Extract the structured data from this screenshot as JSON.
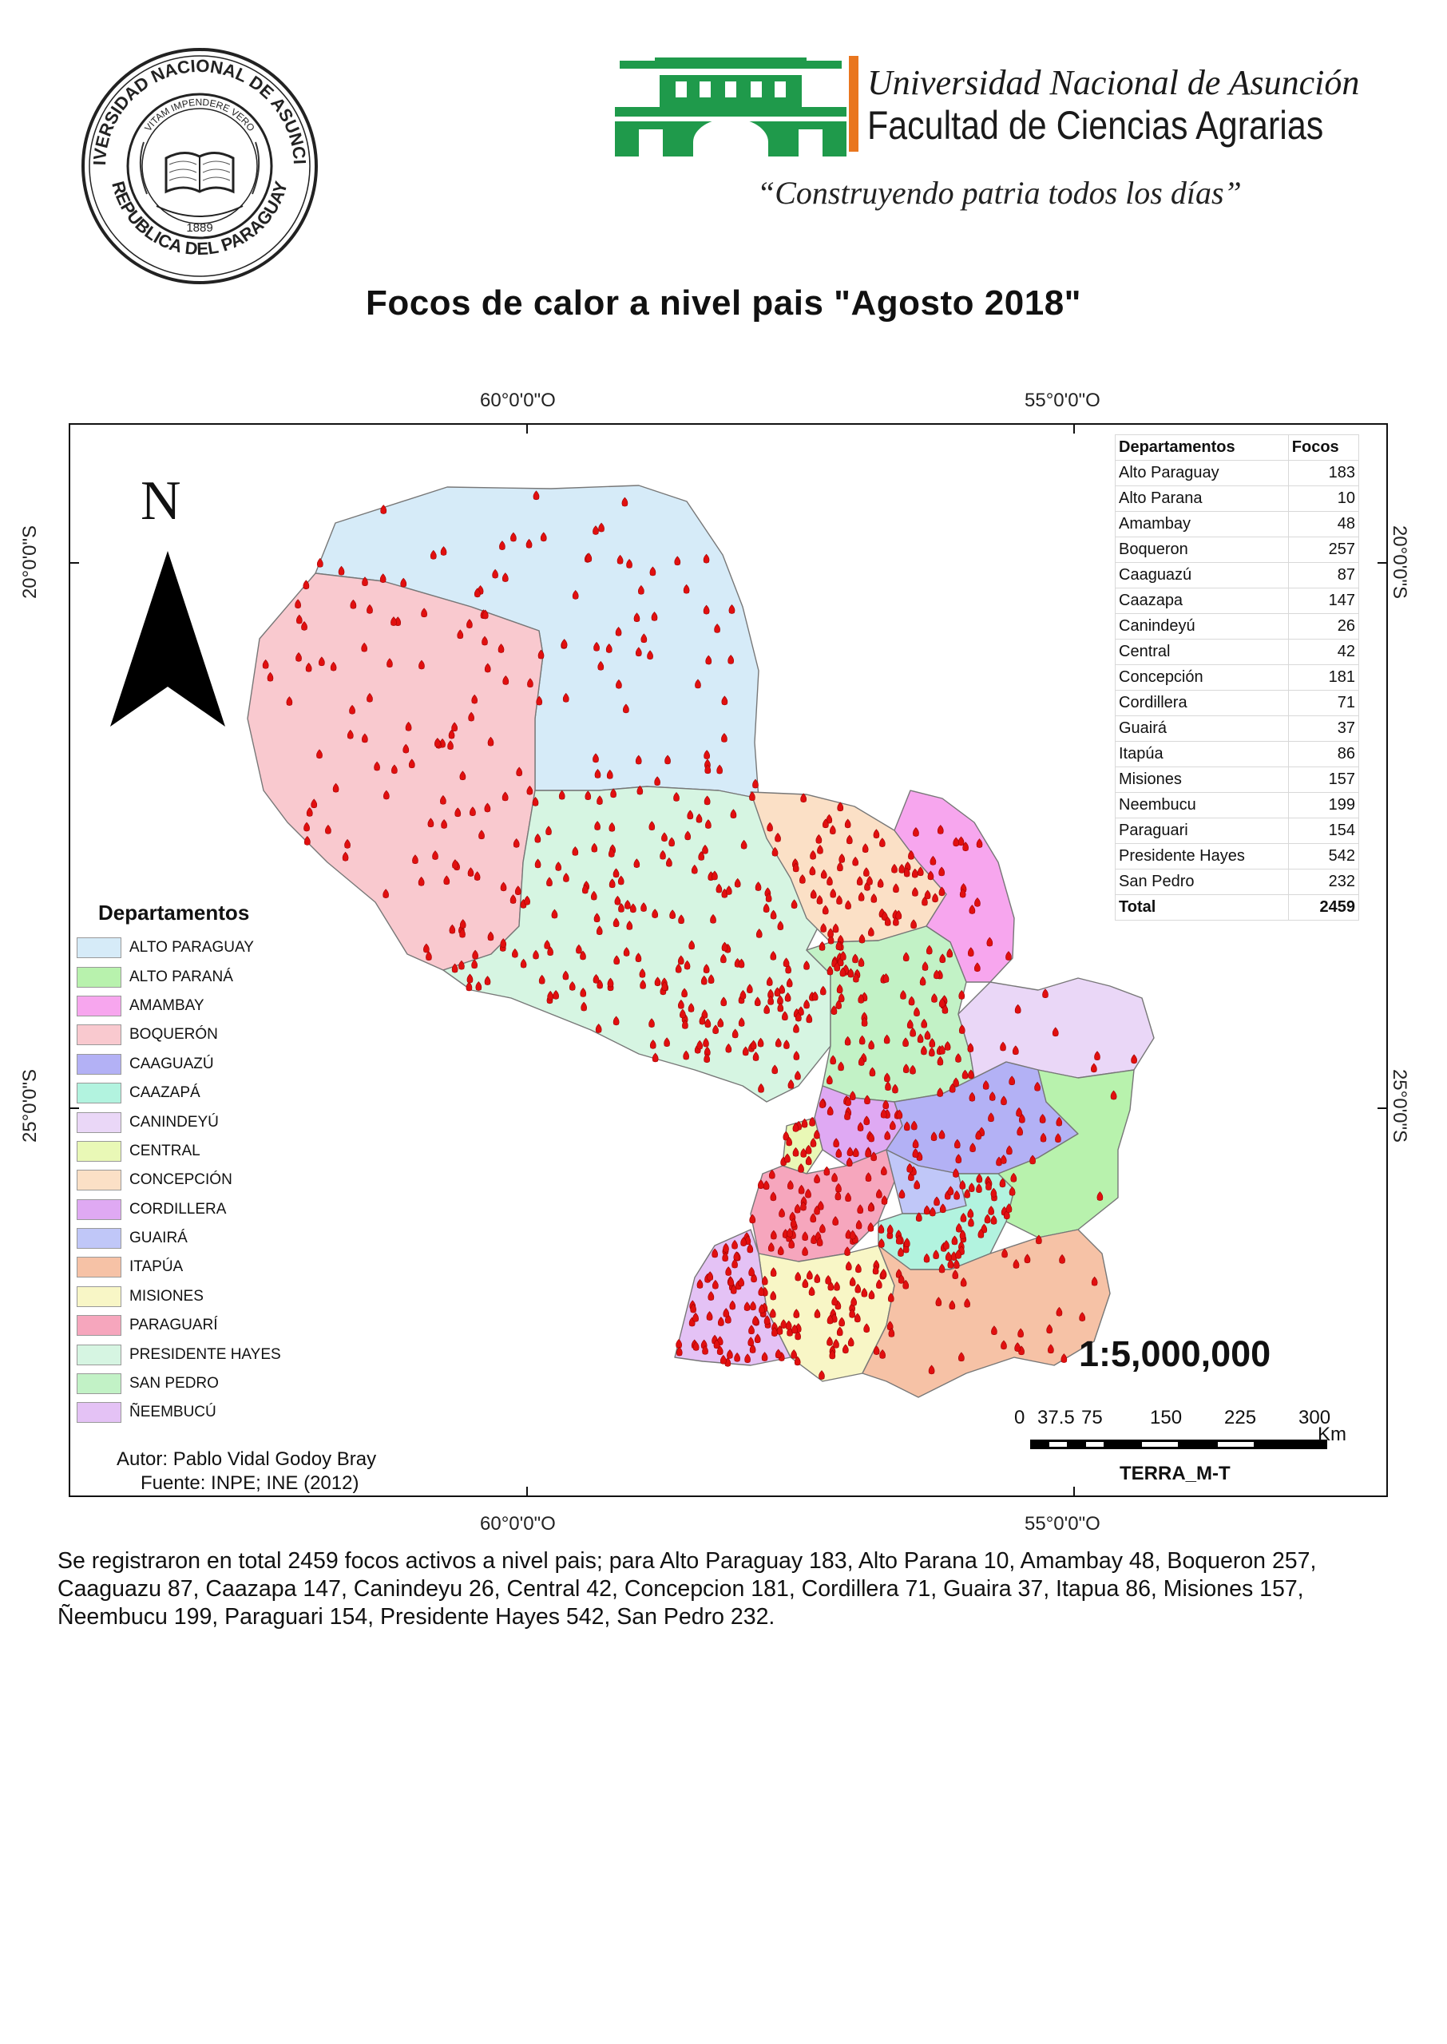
{
  "header": {
    "seal_text_outer": "UNIVERSIDAD NACIONAL DE ASUNCION",
    "seal_text_inner": "VITAM IMPENDERE VERO",
    "seal_bottom": "REPUBLICA DEL PARAGUAY",
    "seal_year": "1889",
    "university_name": "Universidad Nacional de Asunción",
    "faculty_name": "Facultad de Ciencias Agrarias",
    "motto": "“Construyendo patria todos los días”",
    "logo_colors": {
      "green": "#1f9a4b",
      "orange": "#e9761e"
    }
  },
  "title": "Focos de calor a nivel pais \"Agosto 2018\"",
  "graticule": {
    "lon_60": "60°0'0\"O",
    "lon_55": "55°0'0\"O",
    "lat_20": "20°0'0\"S",
    "lat_25": "25°0'0\"S"
  },
  "north_letter": "N",
  "legend": {
    "title": "Departamentos",
    "items": [
      {
        "label": "ALTO PARAGUAY",
        "color": "#d6ebf8"
      },
      {
        "label": "ALTO PARANÁ",
        "color": "#b8f2ad"
      },
      {
        "label": "AMAMBAY",
        "color": "#f7a6ee"
      },
      {
        "label": "BOQUERÓN",
        "color": "#f9c9cf"
      },
      {
        "label": "CAAGUAZÚ",
        "color": "#b3b1f5"
      },
      {
        "label": "CAAZAPÁ",
        "color": "#b2f3df"
      },
      {
        "label": "CANINDEYÚ",
        "color": "#ead7f7"
      },
      {
        "label": "CENTRAL",
        "color": "#e9f8b6"
      },
      {
        "label": "CONCEPCIÓN",
        "color": "#fbe0c6"
      },
      {
        "label": "CORDILLERA",
        "color": "#dfa9f3"
      },
      {
        "label": "GUAIRÁ",
        "color": "#c0c7f8"
      },
      {
        "label": "ITAPÚA",
        "color": "#f6c2a6"
      },
      {
        "label": "MISIONES",
        "color": "#f8f6c6"
      },
      {
        "label": "PARAGUARÍ",
        "color": "#f6a6bd"
      },
      {
        "label": "PRESIDENTE HAYES",
        "color": "#d6f5e2"
      },
      {
        "label": "SAN PEDRO",
        "color": "#c2f2c6"
      },
      {
        "label": "ÑEEMBUCÚ",
        "color": "#e4c2f5"
      }
    ]
  },
  "credits": {
    "author": "Autor: Pablo Vidal Godoy Bray",
    "source": "Fuente: INPE; INE (2012)"
  },
  "table": {
    "headers": [
      "Departamentos",
      "Focos"
    ],
    "rows": [
      [
        "Alto Paraguay",
        "183"
      ],
      [
        "Alto Parana",
        "10"
      ],
      [
        "Amambay",
        "48"
      ],
      [
        "Boqueron",
        "257"
      ],
      [
        "Caaguazú",
        "87"
      ],
      [
        "Caazapa",
        "147"
      ],
      [
        "Canindeyú",
        "26"
      ],
      [
        "Central",
        "42"
      ],
      [
        "Concepción",
        "181"
      ],
      [
        "Cordillera",
        "71"
      ],
      [
        "Guairá",
        "37"
      ],
      [
        "Itapúa",
        "86"
      ],
      [
        "Misiones",
        "157"
      ],
      [
        "Neembucu",
        "199"
      ],
      [
        "Paraguari",
        "154"
      ],
      [
        "Presidente Hayes",
        "542"
      ],
      [
        "San Pedro",
        "232"
      ]
    ],
    "total": [
      "Total",
      "2459"
    ]
  },
  "scale": {
    "ratio": "1:5,000,000",
    "ticks": [
      "0",
      "37.5",
      "75",
      "150",
      "225",
      "300"
    ],
    "unit": "Km",
    "credit": "TERRA_M-T"
  },
  "summary": "Se registraron en total 2459  focos activos a nivel pais; para Alto Paraguay 183, Alto Parana 10, Amambay 48, Boqueron 257, Caaguazu 87, Caazapa 147, Canindeyu 26, Central 42, Concepcion 181, Cordillera 71, Guaira 37, Itapua 86, Misiones 157, Ñeembucu 199, Paraguari 154, Presidente Hayes 542, San Pedro 232.",
  "style": {
    "fire_point_color": "#e10f0f"
  }
}
